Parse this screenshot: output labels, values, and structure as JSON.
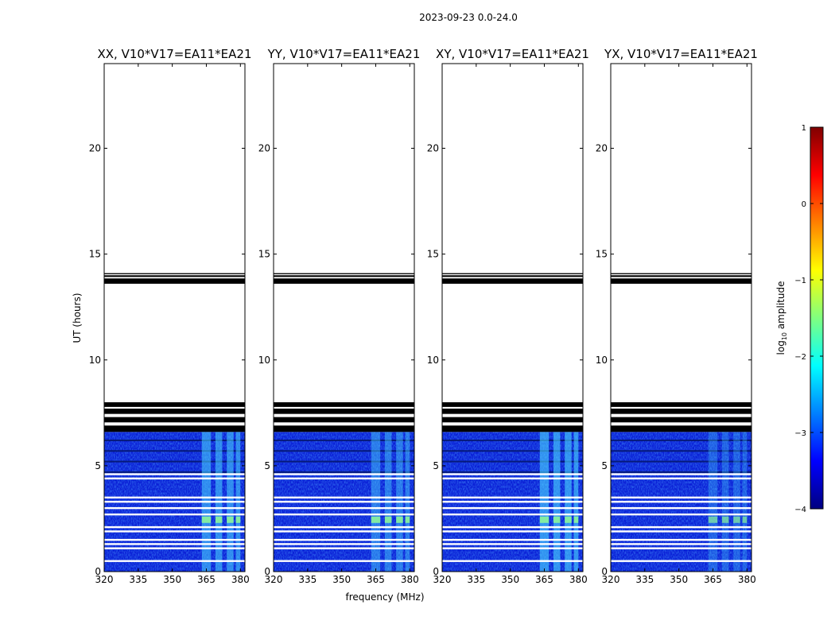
{
  "figure_title": "2023-09-23 0.0-24.0",
  "x_label": "frequency (MHz)",
  "y_label": "UT (hours)",
  "colorbar": {
    "label_prefix": "log",
    "label_sub": "10",
    "label_suffix": " amplitude",
    "ticks": [
      "1",
      "0",
      "−1",
      "−2",
      "−3",
      "−4"
    ],
    "range": [
      -4,
      1
    ],
    "colormap": "jet",
    "stops": [
      "#000080",
      "#0000ff",
      "#0080ff",
      "#00ffff",
      "#80ff80",
      "#ffff00",
      "#ff8000",
      "#ff0000",
      "#800000"
    ]
  },
  "colors": {
    "background": "#ffffff",
    "flag": "#000000",
    "noise_low": "#0a1fd6",
    "noise_mid": "#2f6bff",
    "rfi": "#49d7ff",
    "rfi_strong": "#8cf59a"
  },
  "chart_data": [
    {
      "type": "heatmap",
      "title": "XX, V10*V17=EA11*EA21",
      "xlim": [
        320,
        382
      ],
      "ylim": [
        0,
        24
      ],
      "xticks": [
        "320",
        "335",
        "350",
        "365",
        "380"
      ],
      "yticks": [
        "0",
        "5",
        "10",
        "15",
        "20"
      ],
      "xlabel": "",
      "ylabel": "UT (hours)"
    },
    {
      "type": "heatmap",
      "title": "YY, V10*V17=EA11*EA21",
      "xlim": [
        320,
        382
      ],
      "ylim": [
        0,
        24
      ],
      "xticks": [
        "320",
        "335",
        "350",
        "365",
        "380"
      ],
      "yticks": [
        "0",
        "5",
        "10",
        "15",
        "20"
      ],
      "xlabel": "frequency (MHz)",
      "ylabel": ""
    },
    {
      "type": "heatmap",
      "title": "XY, V10*V17=EA11*EA21",
      "xlim": [
        320,
        382
      ],
      "ylim": [
        0,
        24
      ],
      "xticks": [
        "320",
        "335",
        "350",
        "365",
        "380"
      ],
      "yticks": [
        "0",
        "5",
        "10",
        "15",
        "20"
      ],
      "xlabel": "",
      "ylabel": ""
    },
    {
      "type": "heatmap",
      "title": "YX, V10*V17=EA11*EA21",
      "xlim": [
        320,
        382
      ],
      "ylim": [
        0,
        24
      ],
      "xticks": [
        "320",
        "335",
        "350",
        "365",
        "380"
      ],
      "yticks": [
        "0",
        "5",
        "10",
        "15",
        "20"
      ],
      "xlabel": "",
      "ylabel": ""
    }
  ],
  "data_extent": {
    "ut_start": 0,
    "ut_end": 6.6,
    "flagged_bands_ut": [
      [
        13.6,
        13.85
      ],
      [
        13.92,
        14.0
      ],
      [
        14.05,
        14.1
      ],
      [
        6.6,
        6.9
      ],
      [
        7.05,
        7.3
      ],
      [
        7.45,
        7.7
      ],
      [
        7.78,
        8.0
      ]
    ],
    "rfi_freq_ranges_mhz": [
      [
        363,
        367
      ],
      [
        369,
        372
      ],
      [
        374,
        377
      ],
      [
        378,
        380
      ]
    ],
    "rfi_strong_ut": [
      2.3,
      2.6
    ],
    "gap_ut": [
      0.5,
      1.1,
      1.3,
      1.5,
      1.9,
      2.1,
      2.7,
      3.0,
      3.3,
      3.5,
      4.4,
      4.6
    ]
  }
}
